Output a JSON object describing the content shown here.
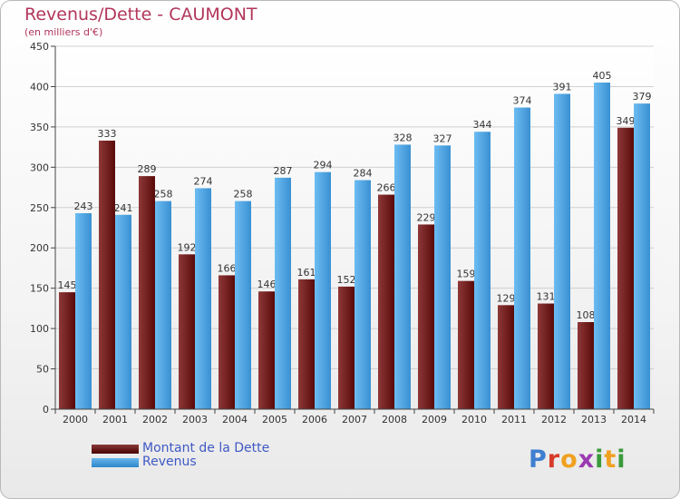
{
  "header": {
    "title": "Revenus/Dette - CAUMONT",
    "subtitle": "(en milliers d'€)"
  },
  "legend": {
    "debt_label": "Montant de la Dette",
    "revenue_label": "Revenus"
  },
  "brand": {
    "text": "Proxiti",
    "letter_colors": [
      "#3f7fd0",
      "#d83a2a",
      "#f0a020",
      "#9a3ab0",
      "#3a9a3a",
      "#f0a020",
      "#3a9a3a"
    ]
  },
  "colors": {
    "debt": "#7a2222",
    "revenue": "#4aa3e4",
    "title": "#b2365a",
    "legend_text": "#3f59c4"
  },
  "chart_data": {
    "type": "bar",
    "categories": [
      "2000",
      "2001",
      "2002",
      "2003",
      "2004",
      "2005",
      "2006",
      "2007",
      "2008",
      "2009",
      "2010",
      "2011",
      "2012",
      "2013",
      "2014"
    ],
    "series": [
      {
        "name": "Montant de la Dette",
        "values": [
          145,
          333,
          289,
          192,
          166,
          146,
          161,
          152,
          266,
          229,
          159,
          129,
          131,
          108,
          349
        ]
      },
      {
        "name": "Revenus",
        "values": [
          243,
          241,
          258,
          274,
          258,
          287,
          294,
          284,
          328,
          327,
          344,
          374,
          391,
          405,
          379
        ]
      }
    ],
    "yticks": [
      0,
      50,
      100,
      150,
      200,
      250,
      300,
      350,
      400,
      450
    ],
    "ylim": [
      0,
      450
    ],
    "grid": true,
    "legend": "bottom-left",
    "data_labels": true
  }
}
